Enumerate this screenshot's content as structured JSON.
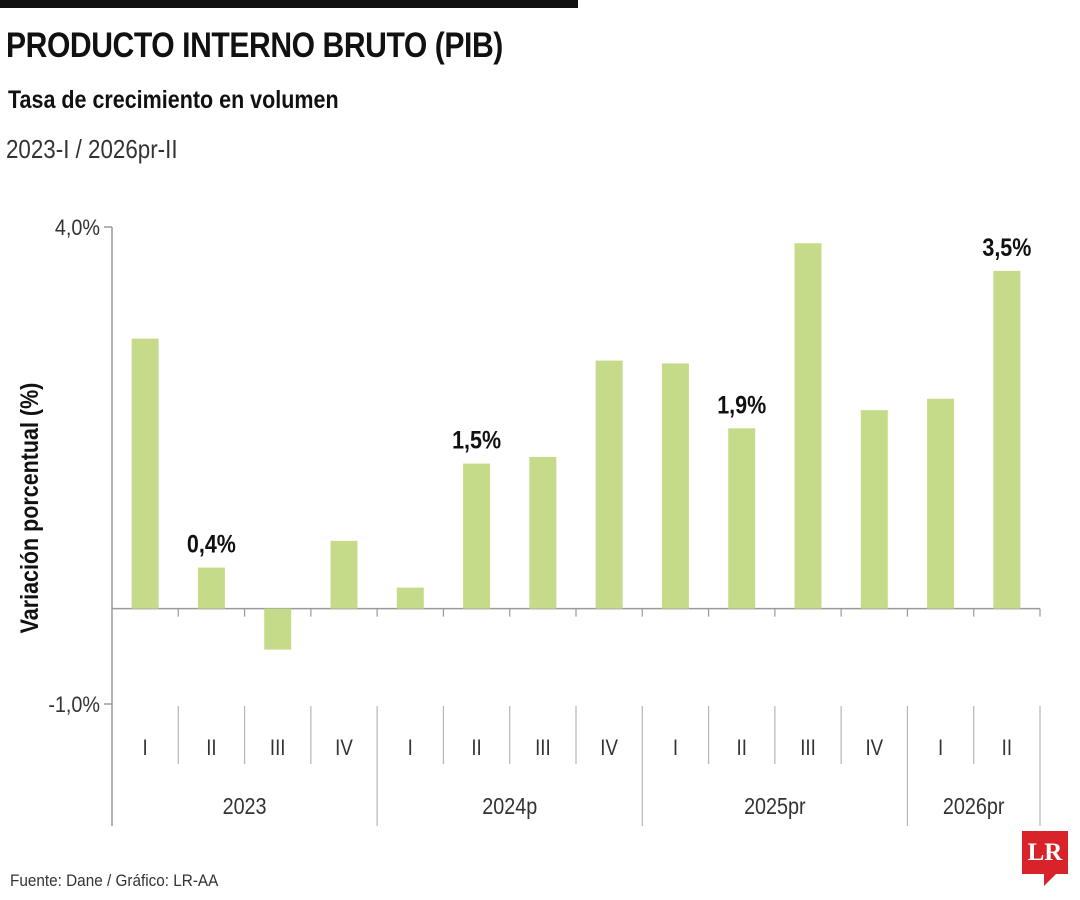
{
  "header": {
    "title": "PRODUCTO INTERNO BRUTO (PIB)",
    "subtitle": "Tasa de crecimiento en volumen",
    "period": "2023-I / 2026pr-II"
  },
  "footer": {
    "source": "Fuente: Dane / Gráfico: LR-AA",
    "logo_text": "LR"
  },
  "colors": {
    "bar": "#c6db8a",
    "logo": "#d8232a",
    "axis": "#9a9a9a",
    "text": "#111111"
  },
  "chart_data": {
    "type": "bar",
    "title": "",
    "ylabel": "Variación porcentual (%)",
    "xlabel": "",
    "ylim": [
      -1.0,
      4.0
    ],
    "ytick_labels": [
      "4,0%",
      "-1,0%"
    ],
    "yticks": [
      4.0,
      -1.0
    ],
    "categories": [
      "I",
      "II",
      "III",
      "IV",
      "I",
      "II",
      "III",
      "IV",
      "I",
      "II",
      "III",
      "IV",
      "I",
      "II"
    ],
    "groups": [
      {
        "label": "2023",
        "count": 4
      },
      {
        "label": "2024p",
        "count": 4
      },
      {
        "label": "2025pr",
        "count": 4
      },
      {
        "label": "2026pr",
        "count": 2
      }
    ],
    "values": [
      2.83,
      0.43,
      -0.43,
      0.71,
      0.22,
      1.52,
      1.59,
      2.6,
      2.57,
      1.89,
      3.83,
      2.08,
      2.2,
      3.54
    ],
    "data_labels": [
      {
        "index": 1,
        "text": "0,4%"
      },
      {
        "index": 5,
        "text": "1,5%"
      },
      {
        "index": 9,
        "text": "1,9%"
      },
      {
        "index": 13,
        "text": "3,5%"
      }
    ],
    "grid": false,
    "legend": "none"
  }
}
